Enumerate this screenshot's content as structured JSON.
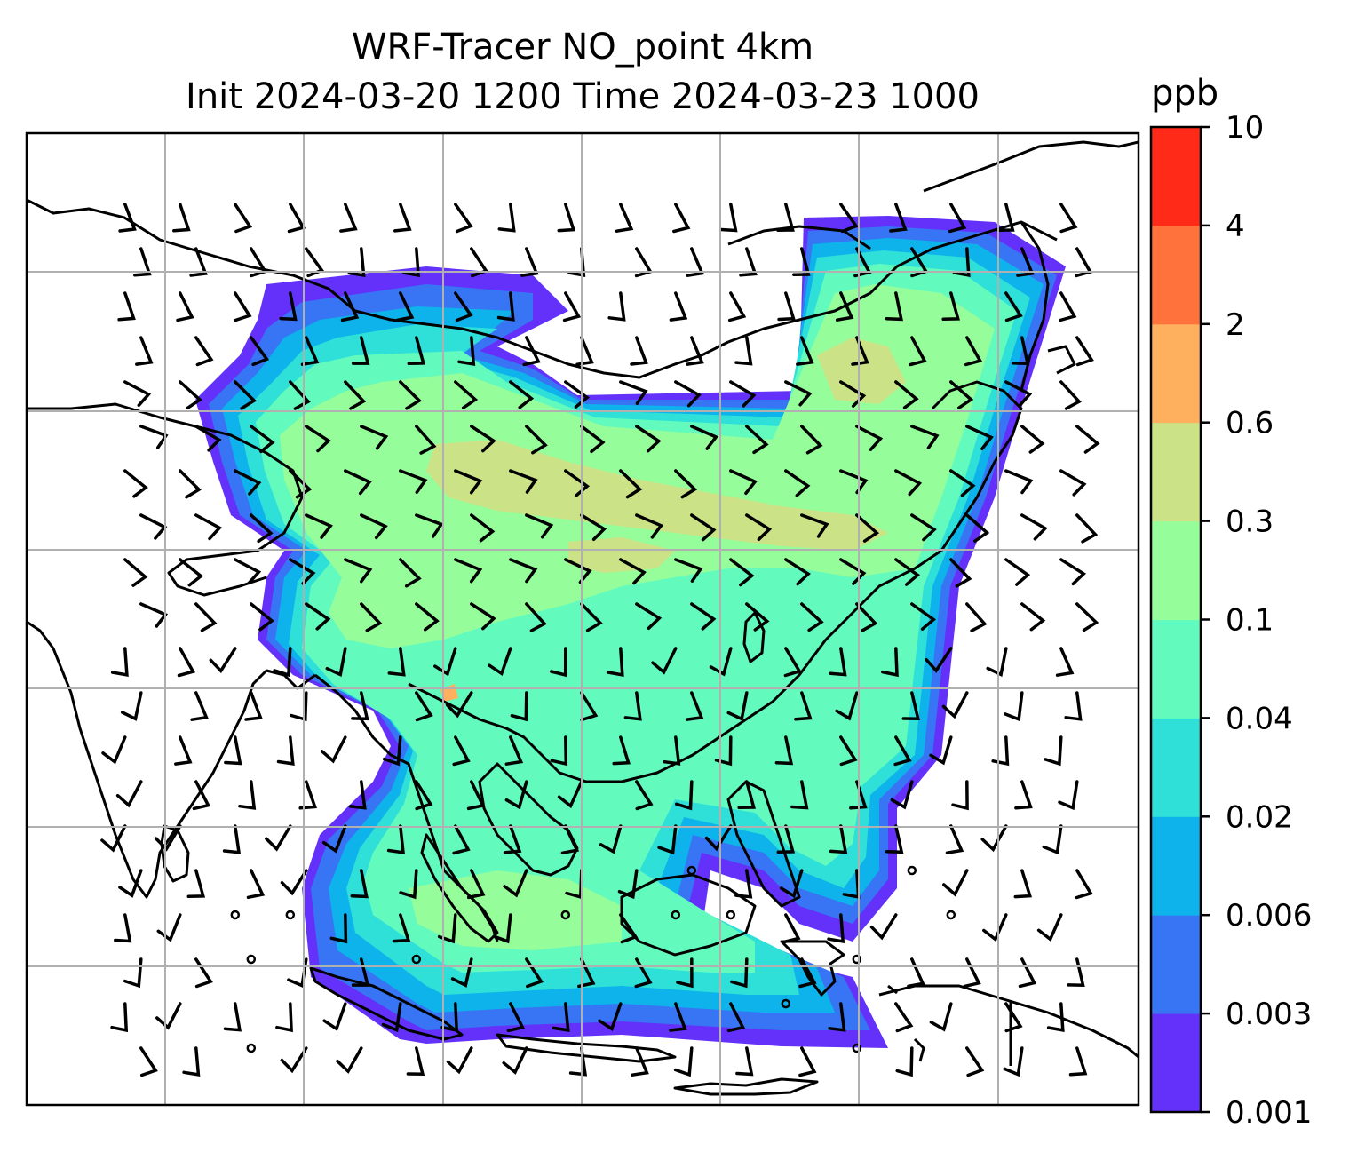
{
  "title_line1": "WRF-Tracer NO_point 4km",
  "title_line2": "Init 2024-03-20 1200 Time 2024-03-23 1000",
  "colorbar": {
    "unit": "ppb",
    "levels": [
      "0.001",
      "0.003",
      "0.006",
      "0.02",
      "0.04",
      "0.1",
      "0.3",
      "0.6",
      "2",
      "4",
      "10"
    ],
    "colors": [
      "#6331f9",
      "#3775f4",
      "#0db3ea",
      "#2ee0d8",
      "#63fbbd",
      "#96fd9b",
      "#cbe386",
      "#ffb05f",
      "#ff723b",
      "#ff2a17"
    ]
  },
  "map": {
    "tracer_plume": "NO_point",
    "gridlines": true,
    "wind_barbs": true
  }
}
